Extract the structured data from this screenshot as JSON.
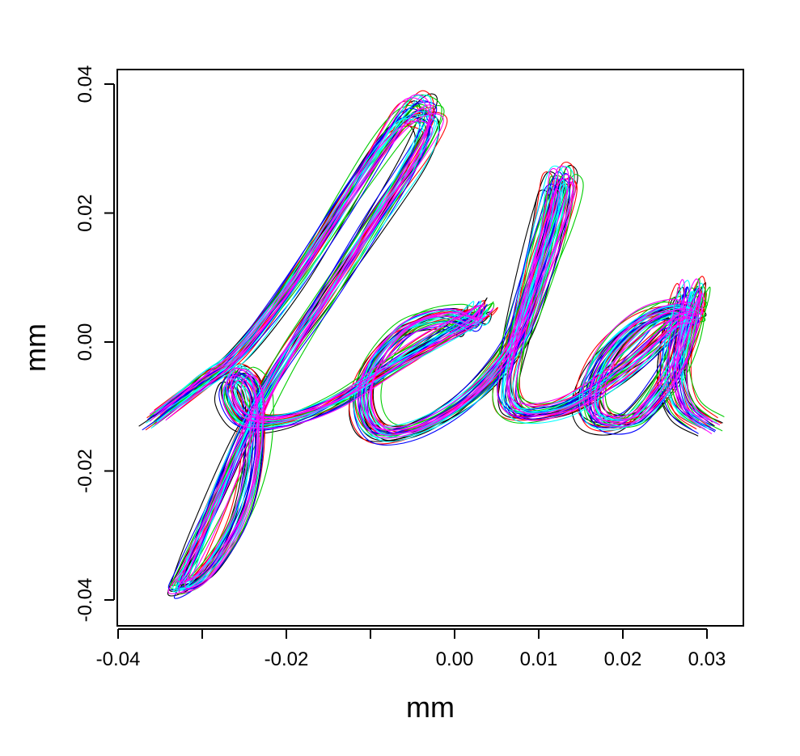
{
  "chart_data": {
    "type": "line",
    "title": "",
    "xlabel": "mm",
    "ylabel": "mm",
    "xlim": [
      -0.04,
      0.034
    ],
    "ylim": [
      -0.044,
      0.042
    ],
    "x_ticks": [
      -0.04,
      -0.03,
      -0.02,
      -0.01,
      0.0,
      0.01,
      0.02,
      0.03
    ],
    "x_tick_labels": [
      {
        "value": -0.04,
        "label": "-0.04"
      },
      {
        "value": -0.02,
        "label": "-0.02"
      },
      {
        "value": 0.0,
        "label": "0.00"
      },
      {
        "value": 0.01,
        "label": "0.01"
      },
      {
        "value": 0.02,
        "label": "0.02"
      },
      {
        "value": 0.03,
        "label": "0.03"
      }
    ],
    "y_ticks": [
      -0.04,
      -0.02,
      0.0,
      0.02,
      0.04
    ],
    "y_tick_labels": [
      {
        "value": -0.04,
        "label": "-0.04"
      },
      {
        "value": -0.02,
        "label": "-0.02"
      },
      {
        "value": 0.0,
        "label": "0.00"
      },
      {
        "value": 0.02,
        "label": "0.02"
      },
      {
        "value": 0.04,
        "label": "0.04"
      }
    ],
    "grid": false,
    "legend": null,
    "description": "Overlaid pen trajectories of repeated handwritten word 'fdla'",
    "series_colors": [
      "#000000",
      "#ff0000",
      "#00cd00",
      "#0000ff",
      "#00ffff",
      "#ff00ff"
    ],
    "base_stroke": [
      [
        -0.036,
        -0.012
      ],
      [
        -0.03,
        -0.006
      ],
      [
        -0.026,
        -0.002
      ],
      [
        -0.02,
        0.008
      ],
      [
        -0.014,
        0.02
      ],
      [
        -0.009,
        0.03
      ],
      [
        -0.006,
        0.035
      ],
      [
        -0.004,
        0.036
      ],
      [
        -0.003,
        0.034
      ],
      [
        -0.005,
        0.028
      ],
      [
        -0.01,
        0.018
      ],
      [
        -0.016,
        0.006
      ],
      [
        -0.021,
        -0.004
      ],
      [
        -0.025,
        -0.014
      ],
      [
        -0.029,
        -0.026
      ],
      [
        -0.032,
        -0.035
      ],
      [
        -0.033,
        -0.038
      ],
      [
        -0.03,
        -0.036
      ],
      [
        -0.026,
        -0.028
      ],
      [
        -0.024,
        -0.018
      ],
      [
        -0.024,
        -0.008
      ],
      [
        -0.026,
        -0.005
      ],
      [
        -0.027,
        -0.008
      ],
      [
        -0.025,
        -0.012
      ],
      [
        -0.02,
        -0.012
      ],
      [
        -0.014,
        -0.009
      ],
      [
        -0.008,
        -0.004
      ],
      [
        -0.003,
        0.0
      ],
      [
        0.001,
        0.003
      ],
      [
        0.003,
        0.005
      ],
      [
        0.002,
        0.003
      ],
      [
        -0.001,
        0.004
      ],
      [
        -0.006,
        0.002
      ],
      [
        -0.01,
        -0.004
      ],
      [
        -0.011,
        -0.01
      ],
      [
        -0.009,
        -0.014
      ],
      [
        -0.004,
        -0.013
      ],
      [
        0.002,
        -0.008
      ],
      [
        0.007,
        0.0
      ],
      [
        0.01,
        0.01
      ],
      [
        0.012,
        0.018
      ],
      [
        0.013,
        0.024
      ],
      [
        0.012,
        0.025
      ],
      [
        0.011,
        0.02
      ],
      [
        0.009,
        0.01
      ],
      [
        0.007,
        0.0
      ],
      [
        0.006,
        -0.008
      ],
      [
        0.008,
        -0.011
      ],
      [
        0.013,
        -0.01
      ],
      [
        0.018,
        -0.006
      ],
      [
        0.022,
        -0.002
      ],
      [
        0.026,
        0.003
      ],
      [
        0.028,
        0.004
      ],
      [
        0.026,
        0.005
      ],
      [
        0.022,
        0.003
      ],
      [
        0.018,
        -0.002
      ],
      [
        0.016,
        -0.008
      ],
      [
        0.017,
        -0.012
      ],
      [
        0.021,
        -0.012
      ],
      [
        0.025,
        -0.006
      ],
      [
        0.027,
        0.0
      ],
      [
        0.028,
        0.006
      ],
      [
        0.028,
        0.008
      ],
      [
        0.027,
        0.004
      ],
      [
        0.026,
        -0.004
      ],
      [
        0.027,
        -0.01
      ],
      [
        0.03,
        -0.013
      ]
    ],
    "variant_offsets": [
      {
        "dx": 0.0,
        "dy": 0.0,
        "sx": 1.0,
        "sy": 1.0
      },
      {
        "dx": 0.0008,
        "dy": 0.001,
        "sx": 1.01,
        "sy": 1.03
      },
      {
        "dx": -0.0008,
        "dy": -0.001,
        "sx": 0.99,
        "sy": 0.98
      },
      {
        "dx": 0.0004,
        "dy": -0.0006,
        "sx": 1.02,
        "sy": 1.01
      },
      {
        "dx": -0.0004,
        "dy": 0.0006,
        "sx": 0.98,
        "sy": 1.02
      },
      {
        "dx": 0.0012,
        "dy": 0.0002,
        "sx": 1.0,
        "sy": 0.99
      }
    ]
  }
}
